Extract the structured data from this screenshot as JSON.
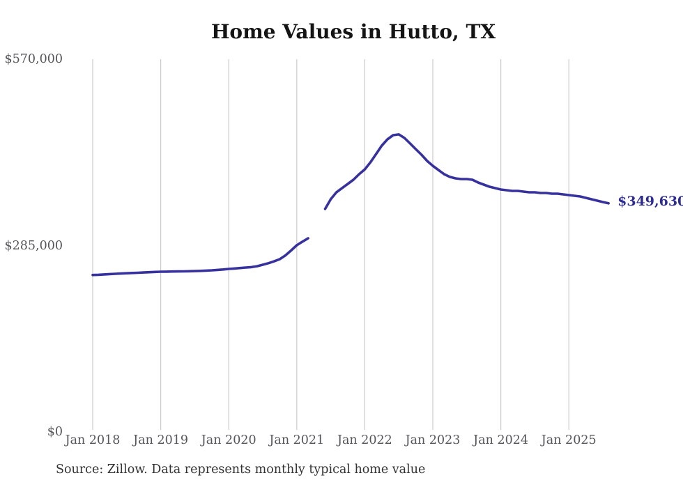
{
  "title": "Home Values in Hutto, TX",
  "source_note": "Source: Zillow. Data represents monthly typical home value",
  "end_label": "$349,630",
  "colors": {
    "line": "#37319e",
    "end_label": "#2e2c96",
    "gridline": "#cbcbcb",
    "axis_text": "#55555a",
    "title_text": "#141414",
    "source_text": "#333333",
    "background": "#ffffff"
  },
  "chart_data": {
    "type": "line",
    "title": "Home Values in Hutto, TX",
    "xlabel": "",
    "ylabel": "",
    "ylim": [
      0,
      570000
    ],
    "grid": "vertical-only",
    "legend": "none",
    "annotation": "$349,630",
    "x_tick_labels": [
      "Jan 2018",
      "Jan 2019",
      "Jan 2020",
      "Jan 2021",
      "Jan 2022",
      "Jan 2023",
      "Jan 2024",
      "Jan 2025"
    ],
    "y_ticks": [
      {
        "label": "$0",
        "value": 0
      },
      {
        "label": "$285,000",
        "value": 285000
      },
      {
        "label": "$570,000",
        "value": 570000
      }
    ],
    "series": [
      {
        "name": "Monthly typical home value",
        "start_month": "2018-01",
        "frequency": "monthly",
        "note": "null values indicate a gap in the plotted line (Apr-May 2021)",
        "values": [
          240000,
          240400,
          240900,
          241400,
          241900,
          242300,
          242700,
          243100,
          243500,
          243900,
          244300,
          244700,
          245000,
          245200,
          245400,
          245500,
          245600,
          245800,
          246000,
          246300,
          246700,
          247200,
          247800,
          248500,
          249300,
          250000,
          250700,
          251400,
          252100,
          253500,
          255700,
          258000,
          260900,
          264200,
          270000,
          277500,
          285500,
          291000,
          296200,
          null,
          null,
          341000,
          356000,
          366500,
          373000,
          379300,
          385700,
          394200,
          401600,
          412300,
          425100,
          437900,
          447500,
          453900,
          455000,
          449600,
          441100,
          432500,
          424000,
          414400,
          407000,
          400600,
          394200,
          390000,
          387800,
          386700,
          386700,
          385700,
          381400,
          378200,
          375000,
          372900,
          370800,
          369700,
          368600,
          368600,
          367600,
          366500,
          366500,
          365400,
          365400,
          364400,
          364400,
          363300,
          362200,
          361200,
          360100,
          358000,
          355800,
          353700,
          351600,
          349630
        ]
      }
    ]
  }
}
